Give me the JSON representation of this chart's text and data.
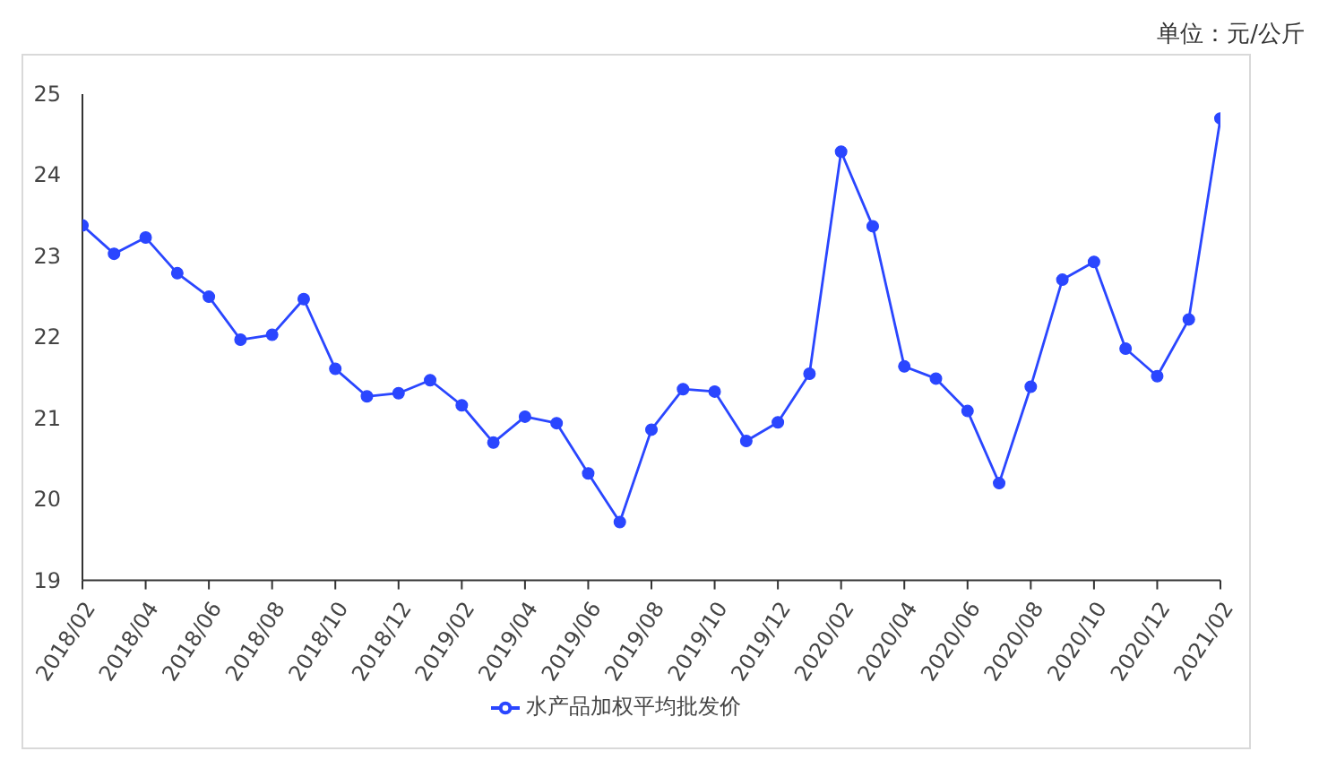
{
  "chart_data": {
    "type": "line",
    "annotations": [
      "单位：元/公斤"
    ],
    "x": [
      "2018-02",
      "2018-03",
      "2018-04",
      "2018-05",
      "2018-06",
      "2018-07",
      "2018-08",
      "2018-09",
      "2018-10",
      "2018-11",
      "2018-12",
      "2019-01",
      "2019-02",
      "2019-03",
      "2019-04",
      "2019-05",
      "2019-06",
      "2019-07",
      "2019-08",
      "2019-09",
      "2019-10",
      "2019-11",
      "2019-12",
      "2020-01",
      "2020-02",
      "2020-03",
      "2020-04",
      "2020-05",
      "2020-06",
      "2020-07",
      "2020-08",
      "2020-09",
      "2020-10",
      "2020-11",
      "2020-12",
      "2021-01",
      "2021-02"
    ],
    "series": [
      {
        "name": "水产品加权平均批发价",
        "color": "#2a46ff",
        "values": [
          23.38,
          23.03,
          23.23,
          22.79,
          22.5,
          21.97,
          22.03,
          22.47,
          21.61,
          21.27,
          21.31,
          21.47,
          21.16,
          20.7,
          21.02,
          20.94,
          20.32,
          19.72,
          20.86,
          21.36,
          21.33,
          20.72,
          20.95,
          21.55,
          24.29,
          23.37,
          21.64,
          21.49,
          21.09,
          20.2,
          21.39,
          22.71,
          22.93,
          21.86,
          21.52,
          22.22,
          24.7
        ]
      }
    ],
    "xlim": [
      "2018-02",
      "2021-02"
    ],
    "xticks": [
      {
        "value": "2018-02",
        "label": "2018/02"
      },
      {
        "value": "2018-04",
        "label": "2018/04"
      },
      {
        "value": "2018-06",
        "label": "2018/06"
      },
      {
        "value": "2018-08",
        "label": "2018/08"
      },
      {
        "value": "2018-10",
        "label": "2018/10"
      },
      {
        "value": "2018-12",
        "label": "2018/12"
      },
      {
        "value": "2019-02",
        "label": "2019/02"
      },
      {
        "value": "2019-04",
        "label": "2019/04"
      },
      {
        "value": "2019-06",
        "label": "2019/06"
      },
      {
        "value": "2019-08",
        "label": "2019/08"
      },
      {
        "value": "2019-10",
        "label": "2019/10"
      },
      {
        "value": "2019-12",
        "label": "2019/12"
      },
      {
        "value": "2020-02",
        "label": "2020/02"
      },
      {
        "value": "2020-04",
        "label": "2020/04"
      },
      {
        "value": "2020-06",
        "label": "2020/06"
      },
      {
        "value": "2020-08",
        "label": "2020/08"
      },
      {
        "value": "2020-10",
        "label": "2020/10"
      },
      {
        "value": "2020-12",
        "label": "2020/12"
      },
      {
        "value": "2021-02",
        "label": "2021/02"
      }
    ],
    "ylim": [
      19,
      25
    ],
    "yticks": [
      19,
      20,
      21,
      22,
      23,
      24,
      25
    ],
    "legend": "bottom",
    "marker": "circle"
  }
}
